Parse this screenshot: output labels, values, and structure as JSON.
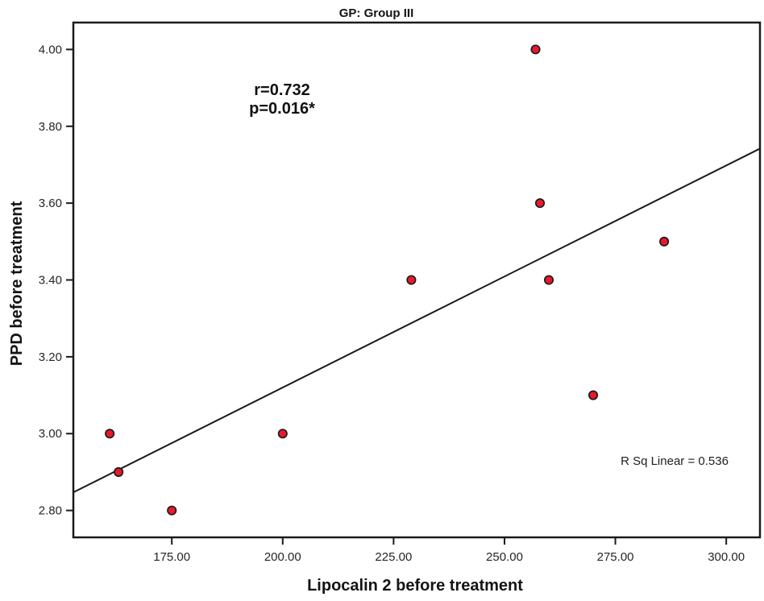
{
  "chart": {
    "title": "GP: Group III",
    "annotation": {
      "line1": "r=0.732",
      "line2": "p=0.016*"
    },
    "r_sq_label": "R Sq Linear = 0.536",
    "xlabel": "Lipocalin 2 before treatment",
    "ylabel": "PPD before treatment"
  },
  "chart_data": {
    "type": "scatter",
    "title": "GP: Group III",
    "xlabel": "Lipocalin 2 before treatment",
    "ylabel": "PPD before treatment",
    "points": [
      {
        "x": 161,
        "y": 3.0
      },
      {
        "x": 163,
        "y": 2.9
      },
      {
        "x": 175,
        "y": 2.8
      },
      {
        "x": 200,
        "y": 3.0
      },
      {
        "x": 229,
        "y": 3.4
      },
      {
        "x": 257,
        "y": 4.0
      },
      {
        "x": 258,
        "y": 3.6
      },
      {
        "x": 260,
        "y": 3.4
      },
      {
        "x": 270,
        "y": 3.1
      },
      {
        "x": 286,
        "y": 3.5
      }
    ],
    "x_ticks": [
      175,
      200,
      225,
      250,
      275,
      300
    ],
    "y_ticks": [
      2.8,
      3.0,
      3.2,
      3.4,
      3.6,
      3.8,
      4.0
    ],
    "xlim": [
      152.8,
      307.6
    ],
    "ylim": [
      2.73,
      4.07
    ],
    "fit_line": {
      "slope": 0.00578,
      "intercept": 1.964
    },
    "stats": {
      "r": 0.732,
      "p": 0.016,
      "r_sq_linear": 0.536
    },
    "grid": false,
    "legend": null,
    "colors": {
      "point_fill": "#e8192c",
      "point_edge": "#1b1b1b",
      "fit_line": "#1a1a1a",
      "frame": "#1a1a1a"
    }
  }
}
